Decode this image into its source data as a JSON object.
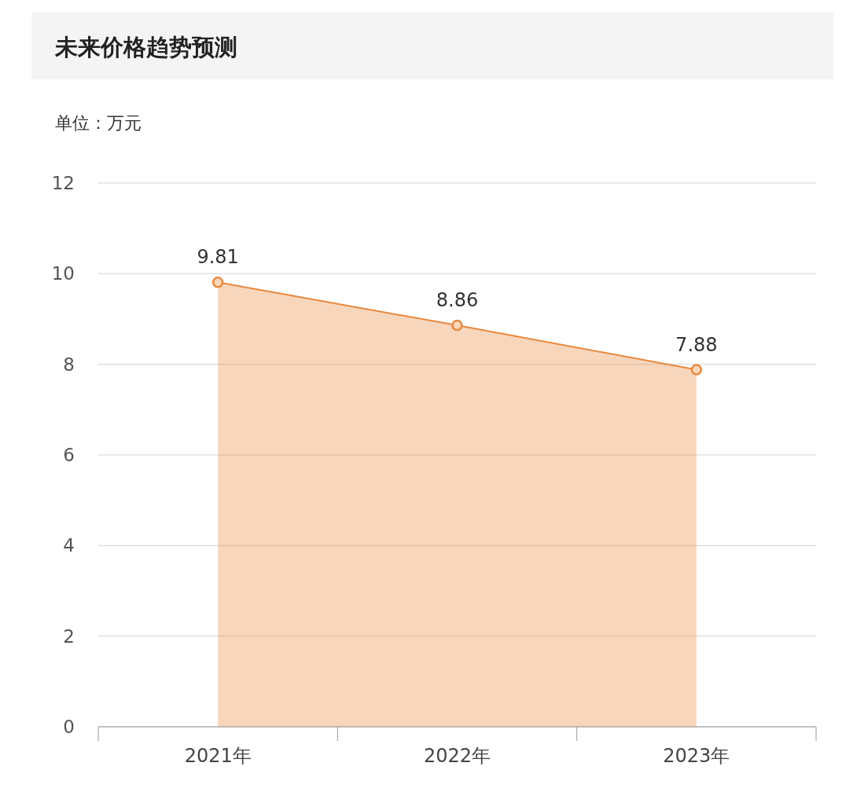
{
  "chart_data": {
    "type": "area",
    "title": "未来价格趋势预测",
    "ylabel": "单位：万元",
    "categories": [
      "2021年",
      "2022年",
      "2023年"
    ],
    "values": [
      9.81,
      8.86,
      7.88
    ],
    "color": "#e8893f",
    "ylim": [
      0,
      12
    ],
    "yticks": [
      0,
      2,
      4,
      6,
      8,
      10,
      12
    ],
    "grid": "y",
    "marker": "circle",
    "data_labels": true
  }
}
